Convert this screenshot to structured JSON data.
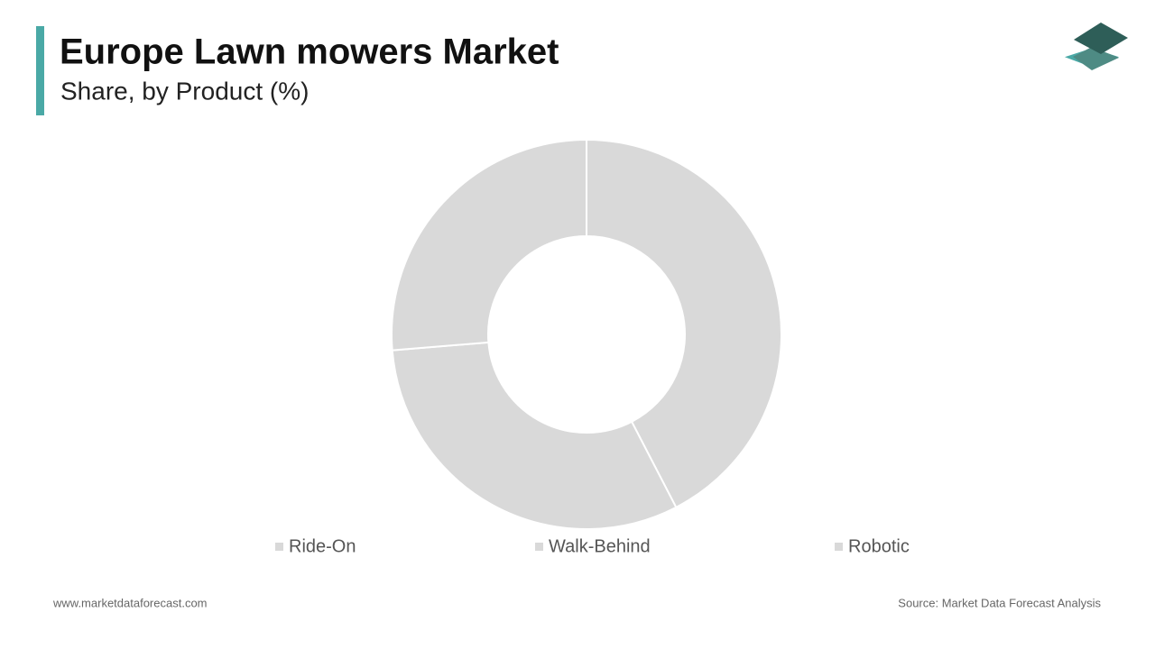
{
  "chart_data": {
    "type": "donut",
    "title": "Europe Lawn mowers Market",
    "subtitle": "Share, by Product (%)",
    "categories": [
      "Ride-On",
      "Walk-Behind",
      "Robotic"
    ],
    "values": [
      42.4,
      31.3,
      26.3
    ],
    "colors": [
      "#d9d9d9",
      "#d9d9d9",
      "#d9d9d9"
    ]
  },
  "footer": {
    "website": "www.marketdataforecast.com",
    "source": "Source: Market Data Forecast Analysis"
  }
}
